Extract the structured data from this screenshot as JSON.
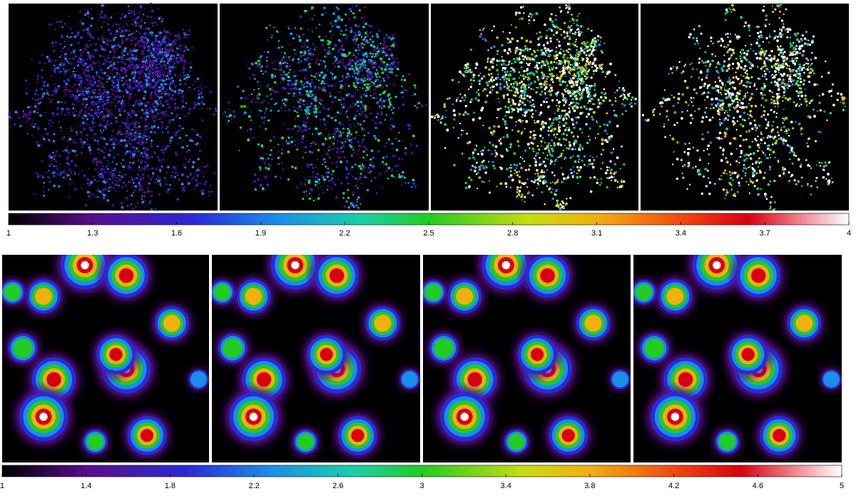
{
  "top_colorbar": {
    "range": [
      1,
      4
    ],
    "ticks": [
      1,
      1.3,
      1.6,
      1.9,
      2.2,
      2.5,
      2.8,
      3.1,
      3.4,
      3.7,
      4
    ]
  },
  "bottom_colorbar": {
    "range": [
      1,
      5
    ],
    "ticks": [
      1,
      1.4,
      1.8,
      2.2,
      2.6,
      3,
      3.4,
      3.8,
      4.2,
      4.6,
      5
    ]
  }
}
